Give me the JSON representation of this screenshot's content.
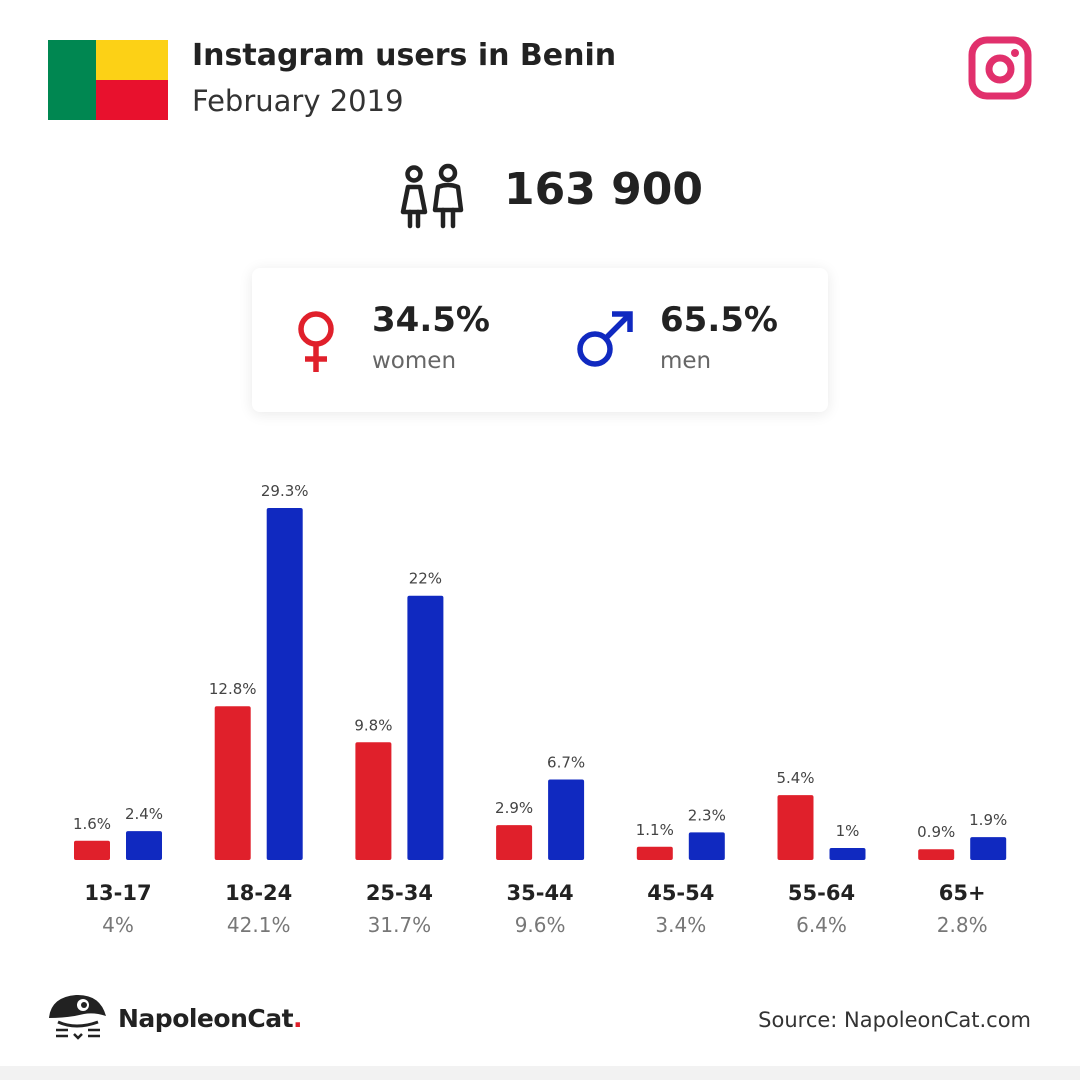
{
  "header": {
    "title": "Instagram users in Benin",
    "subtitle": "February 2019"
  },
  "total_users": "163 900",
  "gender": {
    "women": {
      "pct": "34.5%",
      "label": "women"
    },
    "men": {
      "pct": "65.5%",
      "label": "men"
    }
  },
  "colors": {
    "women": "#e0202b",
    "men": "#1029c0",
    "instagram": "#e1306c",
    "flag_green": "#008751",
    "flag_yellow": "#fcd116",
    "flag_red": "#e8112d"
  },
  "chart_data": {
    "type": "bar",
    "categories": [
      "13-17",
      "18-24",
      "25-34",
      "35-44",
      "45-54",
      "55-64",
      "65+"
    ],
    "category_totals": [
      "4%",
      "42.1%",
      "31.7%",
      "9.6%",
      "3.4%",
      "6.4%",
      "2.8%"
    ],
    "series": [
      {
        "values": [
          1.6,
          12.8,
          9.8,
          2.9,
          1.1,
          5.4,
          0.9
        ],
        "labels": [
          "1.6%",
          "12.8%",
          "9.8%",
          "2.9%",
          "1.1%",
          "5.4%",
          "0.9%"
        ],
        "color": "#e0202b"
      },
      {
        "values": [
          2.4,
          29.3,
          22,
          6.7,
          2.3,
          1,
          1.9
        ],
        "labels": [
          "2.4%",
          "29.3%",
          "22%",
          "6.7%",
          "2.3%",
          "1%",
          "1.9%"
        ],
        "color": "#1029c0"
      }
    ],
    "ylim": [
      0,
      29.3
    ],
    "grid": false,
    "legend": "none"
  },
  "footer": {
    "brand": "NapoleonCat",
    "brand_dot": ".",
    "source": "Source: NapoleonCat.com"
  },
  "icons": {
    "flag": "benin-flag-icon",
    "instagram": "instagram-icon",
    "users": "users-icon",
    "female": "female-symbol-icon",
    "male": "male-symbol-icon",
    "logo": "napoleoncat-logo-icon"
  }
}
